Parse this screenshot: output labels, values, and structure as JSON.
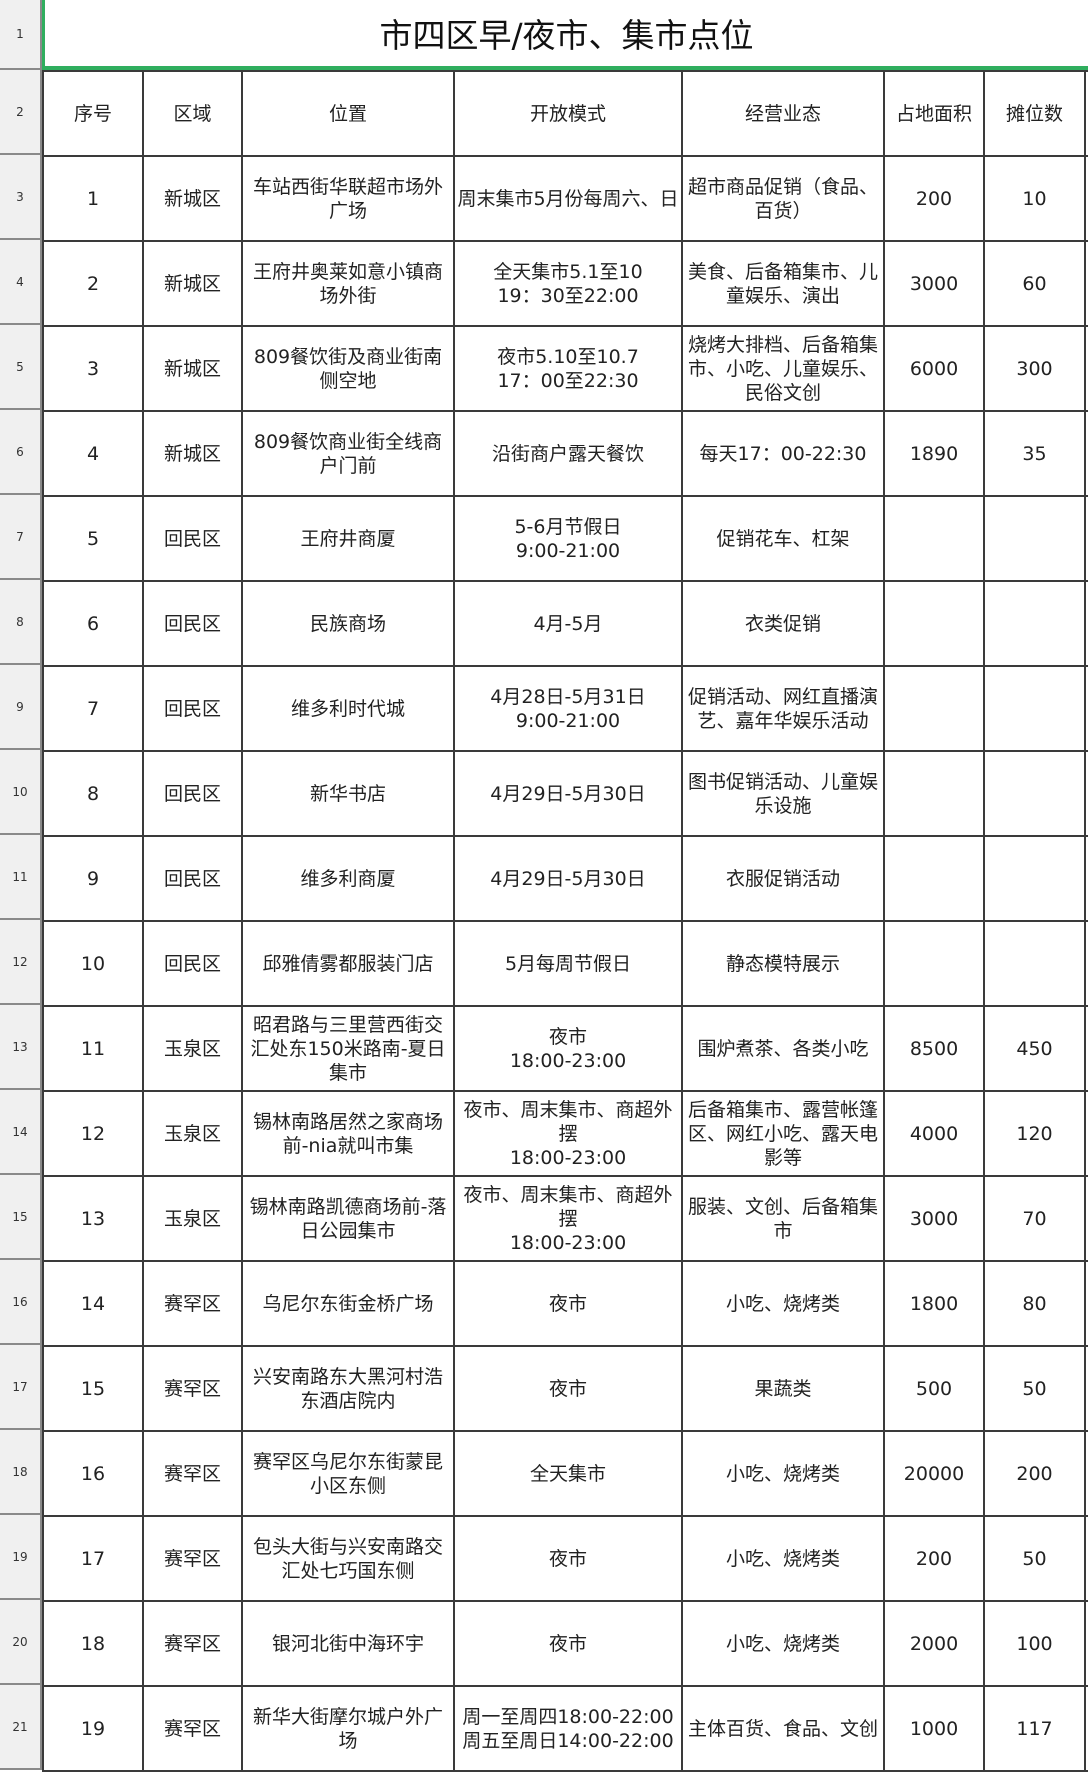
{
  "title": "市四区早/夜市、集市点位",
  "row_numbers": [
    "1",
    "2",
    "3",
    "4",
    "5",
    "6",
    "7",
    "8",
    "9",
    "10",
    "11",
    "12",
    "13",
    "14",
    "15",
    "16",
    "17",
    "18",
    "19",
    "20",
    "21"
  ],
  "headers": [
    "序号",
    "区域",
    "位置",
    "开放模式",
    "经营业态",
    "占地面积",
    "摊位数"
  ],
  "rows": [
    [
      "1",
      "新城区",
      "车站西街华联超市场外广场",
      "周末集市5月份每周六、日",
      "超市商品促销（食品、百货）",
      "200",
      "10"
    ],
    [
      "2",
      "新城区",
      "王府井奥莱如意小镇商场外街",
      "全天集市5.1至10\n19：30至22:00",
      "美食、后备箱集市、儿童娱乐、演出",
      "3000",
      "60"
    ],
    [
      "3",
      "新城区",
      "809餐饮街及商业街南侧空地",
      "夜市5.10至10.7\n17：00至22:30",
      "烧烤大排档、后备箱集市、小吃、儿童娱乐、民俗文创",
      "6000",
      "300"
    ],
    [
      "4",
      "新城区",
      "809餐饮商业街全线商户门前",
      "沿街商户露天餐饮",
      "每天17：00-22:30",
      "1890",
      "35"
    ],
    [
      "5",
      "回民区",
      "王府井商厦",
      "5-6月节假日\n9:00-21:00",
      "促销花车、杠架",
      "",
      ""
    ],
    [
      "6",
      "回民区",
      "民族商场",
      "4月-5月",
      "衣类促销",
      "",
      ""
    ],
    [
      "7",
      "回民区",
      "维多利时代城",
      "4月28日-5月31日\n9:00-21:00",
      "促销活动、网红直播演艺、嘉年华娱乐活动",
      "",
      ""
    ],
    [
      "8",
      "回民区",
      "新华书店",
      "4月29日-5月30日",
      "图书促销活动、儿童娱乐设施",
      "",
      ""
    ],
    [
      "9",
      "回民区",
      "维多利商厦",
      "4月29日-5月30日",
      "衣服促销活动",
      "",
      ""
    ],
    [
      "10",
      "回民区",
      "邱雅倩雾都服装门店",
      "5月每周节假日",
      "静态模特展示",
      "",
      ""
    ],
    [
      "11",
      "玉泉区",
      "昭君路与三里营西街交汇处东150米路南-夏日集市",
      "夜市\n18:00-23:00",
      "围炉煮茶、各类小吃",
      "8500",
      "450"
    ],
    [
      "12",
      "玉泉区",
      "锡林南路居然之家商场前-nia就叫市集",
      "夜市、周末集市、商超外摆\n18:00-23:00",
      "后备箱集市、露营帐篷区、网红小吃、露天电影等",
      "4000",
      "120"
    ],
    [
      "13",
      "玉泉区",
      "锡林南路凯德商场前-落日公园集市",
      "夜市、周末集市、商超外摆\n18:00-23:00",
      "服装、文创、后备箱集市",
      "3000",
      "70"
    ],
    [
      "14",
      "赛罕区",
      "乌尼尔东街金桥广场",
      "夜市",
      "小吃、烧烤类",
      "1800",
      "80"
    ],
    [
      "15",
      "赛罕区",
      "兴安南路东大黑河村浩东酒店院内",
      "夜市",
      "果蔬类",
      "500",
      "50"
    ],
    [
      "16",
      "赛罕区",
      "赛罕区乌尼尔东街蒙昆小区东侧",
      "全天集市",
      "小吃、烧烤类",
      "20000",
      "200"
    ],
    [
      "17",
      "赛罕区",
      "包头大街与兴安南路交汇处七巧国东侧",
      "夜市",
      "小吃、烧烤类",
      "200",
      "50"
    ],
    [
      "18",
      "赛罕区",
      "银河北街中海环宇",
      "夜市",
      "小吃、烧烤类",
      "2000",
      "100"
    ],
    [
      "19",
      "赛罕区",
      "新华大街摩尔城户外广场",
      "周一至周四18:00-22:00\n周五至周日14:00-22:00",
      "主体百货、食品、文创",
      "1000",
      "117"
    ]
  ]
}
